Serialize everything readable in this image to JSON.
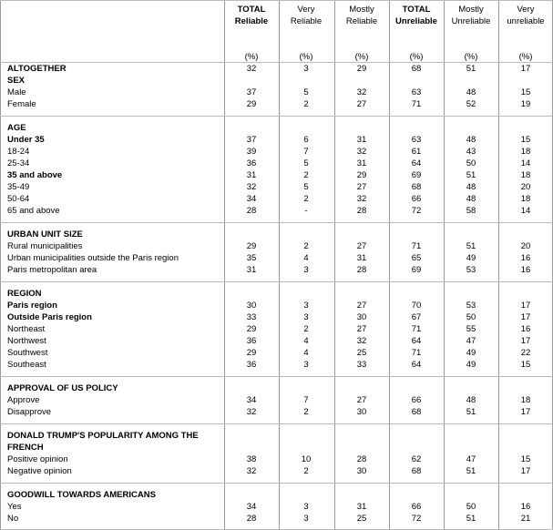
{
  "header": {
    "columns": [
      {
        "lines": [
          "TOTAL",
          "Reliable"
        ],
        "unit": "(%)",
        "bold": true
      },
      {
        "lines": [
          "Very",
          "Reliable"
        ],
        "unit": "(%)",
        "bold": false
      },
      {
        "lines": [
          "Mostly",
          "Reliable"
        ],
        "unit": "(%)",
        "bold": false
      },
      {
        "lines": [
          "TOTAL",
          "Unreliable"
        ],
        "unit": "(%)",
        "bold": true
      },
      {
        "lines": [
          "Mostly",
          "Unreliable"
        ],
        "unit": "(%)",
        "bold": false
      },
      {
        "lines": [
          "Very",
          "unreliable"
        ],
        "unit": "(%)",
        "bold": false
      }
    ]
  },
  "sections": [
    {
      "title": [
        "ALTOGETHER"
      ],
      "values": [
        32,
        3,
        29,
        68,
        51,
        17
      ],
      "rows": []
    },
    {
      "title": [
        "SEX"
      ],
      "rows": [
        {
          "label": "Male",
          "values": [
            37,
            5,
            32,
            63,
            48,
            15
          ]
        },
        {
          "label": "Female",
          "values": [
            29,
            2,
            27,
            71,
            52,
            19
          ]
        }
      ]
    },
    {
      "title": [
        "AGE"
      ],
      "rows": [
        {
          "label": "Under 35",
          "bold": true,
          "values": [
            37,
            6,
            31,
            63,
            48,
            15
          ]
        },
        {
          "label": "18-24",
          "values": [
            39,
            7,
            32,
            61,
            43,
            18
          ]
        },
        {
          "label": "25-34",
          "values": [
            36,
            5,
            31,
            64,
            50,
            14
          ]
        },
        {
          "label": "35 and above",
          "bold": true,
          "values": [
            31,
            2,
            29,
            69,
            51,
            18
          ]
        },
        {
          "label": "35-49",
          "values": [
            32,
            5,
            27,
            68,
            48,
            20
          ]
        },
        {
          "label": "50-64",
          "values": [
            34,
            2,
            32,
            66,
            48,
            18
          ]
        },
        {
          "label": "65 and above",
          "values": [
            28,
            "-",
            28,
            72,
            58,
            14
          ]
        }
      ]
    },
    {
      "title": [
        "URBAN UNIT SIZE"
      ],
      "rows": [
        {
          "label": "Rural municipalities",
          "values": [
            29,
            2,
            27,
            71,
            51,
            20
          ]
        },
        {
          "label": "Urban municipalities outside the Paris region",
          "values": [
            35,
            4,
            31,
            65,
            49,
            16
          ]
        },
        {
          "label": "Paris metropolitan area",
          "values": [
            31,
            3,
            28,
            69,
            53,
            16
          ]
        }
      ]
    },
    {
      "title": [
        "REGION"
      ],
      "rows": [
        {
          "label": "Paris region",
          "bold": true,
          "values": [
            30,
            3,
            27,
            70,
            53,
            17
          ]
        },
        {
          "label": "Outside Paris region",
          "bold": true,
          "values": [
            33,
            3,
            30,
            67,
            50,
            17
          ]
        },
        {
          "label": "Northeast",
          "values": [
            29,
            2,
            27,
            71,
            55,
            16
          ]
        },
        {
          "label": "Northwest",
          "values": [
            36,
            4,
            32,
            64,
            47,
            17
          ]
        },
        {
          "label": "Southwest",
          "values": [
            29,
            4,
            25,
            71,
            49,
            22
          ]
        },
        {
          "label": "Southeast",
          "values": [
            36,
            3,
            33,
            64,
            49,
            15
          ]
        }
      ]
    },
    {
      "title": [
        "APPROVAL OF US POLICY"
      ],
      "rows": [
        {
          "label": "Approve",
          "values": [
            34,
            7,
            27,
            66,
            48,
            18
          ]
        },
        {
          "label": "Disapprove",
          "values": [
            32,
            2,
            30,
            68,
            51,
            17
          ]
        }
      ]
    },
    {
      "title": [
        "DONALD TRUMP'S POPULARITY AMONG THE",
        "FRENCH"
      ],
      "rows": [
        {
          "label": "Positive opinion",
          "values": [
            38,
            10,
            28,
            62,
            47,
            15
          ]
        },
        {
          "label": "Negative opinion",
          "values": [
            32,
            2,
            30,
            68,
            51,
            17
          ]
        }
      ]
    },
    {
      "title": [
        "GOODWILL TOWARDS AMERICANS"
      ],
      "rows": [
        {
          "label": "Yes",
          "values": [
            34,
            3,
            31,
            66,
            50,
            16
          ]
        },
        {
          "label": "No",
          "values": [
            28,
            3,
            25,
            72,
            51,
            21
          ]
        }
      ]
    }
  ]
}
